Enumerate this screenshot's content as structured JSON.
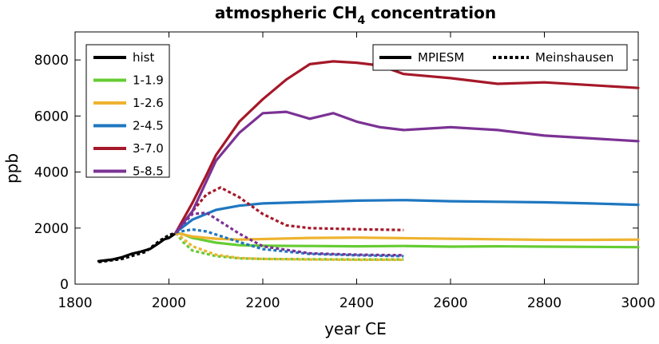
{
  "chart_data": {
    "type": "line",
    "title_main": "atmospheric CH",
    "title_sub": "4",
    "title_tail": " concentration",
    "xlabel": "year CE",
    "ylabel": "ppb",
    "xlim": [
      1800,
      3000
    ],
    "ylim": [
      0,
      9000
    ],
    "xticks": [
      "1800",
      "2000",
      "2200",
      "2400",
      "2600",
      "2800",
      "3000"
    ],
    "yticks": [
      "0",
      "2000",
      "4000",
      "6000",
      "8000"
    ],
    "grid": false,
    "legend_series_placement": "top-left",
    "legend_style_placement": "top-right",
    "style_legend": [
      {
        "label": "MPIESM",
        "dash": "solid"
      },
      {
        "label": "Meinshausen",
        "dash": "dotted"
      }
    ],
    "series": [
      {
        "name": "hist",
        "color": "#000000",
        "solid": [
          [
            1850,
            820
          ],
          [
            1880,
            880
          ],
          [
            1900,
            960
          ],
          [
            1920,
            1080
          ],
          [
            1940,
            1160
          ],
          [
            1960,
            1260
          ],
          [
            1980,
            1480
          ],
          [
            1990,
            1600
          ],
          [
            2000,
            1650
          ],
          [
            2014,
            1810
          ]
        ],
        "dotted": [
          [
            1850,
            790
          ],
          [
            1900,
            900
          ],
          [
            1950,
            1150
          ],
          [
            1980,
            1550
          ],
          [
            2000,
            1750
          ],
          [
            2014,
            1830
          ]
        ]
      },
      {
        "name": "1-1.9",
        "color": "#66cc33",
        "solid": [
          [
            2015,
            1830
          ],
          [
            2030,
            1780
          ],
          [
            2050,
            1650
          ],
          [
            2100,
            1480
          ],
          [
            2150,
            1390
          ],
          [
            2200,
            1370
          ],
          [
            2300,
            1360
          ],
          [
            2400,
            1350
          ],
          [
            2500,
            1360
          ],
          [
            2600,
            1340
          ],
          [
            2700,
            1350
          ],
          [
            2800,
            1340
          ],
          [
            2900,
            1330
          ],
          [
            3000,
            1320
          ]
        ],
        "dotted": [
          [
            2015,
            1830
          ],
          [
            2030,
            1500
          ],
          [
            2050,
            1200
          ],
          [
            2100,
            1000
          ],
          [
            2150,
            920
          ],
          [
            2200,
            900
          ],
          [
            2300,
            890
          ],
          [
            2400,
            880
          ],
          [
            2500,
            880
          ]
        ]
      },
      {
        "name": "1-2.6",
        "color": "#eeb32f",
        "solid": [
          [
            2015,
            1830
          ],
          [
            2050,
            1700
          ],
          [
            2100,
            1620
          ],
          [
            2150,
            1590
          ],
          [
            2200,
            1610
          ],
          [
            2300,
            1650
          ],
          [
            2400,
            1660
          ],
          [
            2500,
            1640
          ],
          [
            2600,
            1620
          ],
          [
            2700,
            1600
          ],
          [
            2800,
            1580
          ],
          [
            2900,
            1580
          ],
          [
            3000,
            1590
          ]
        ],
        "dotted": [
          [
            2015,
            1830
          ],
          [
            2050,
            1350
          ],
          [
            2100,
            1050
          ],
          [
            2150,
            930
          ],
          [
            2200,
            900
          ],
          [
            2300,
            880
          ],
          [
            2400,
            870
          ],
          [
            2500,
            870
          ]
        ]
      },
      {
        "name": "2-4.5",
        "color": "#1f77c0",
        "solid": [
          [
            2015,
            1850
          ],
          [
            2050,
            2300
          ],
          [
            2100,
            2650
          ],
          [
            2150,
            2800
          ],
          [
            2200,
            2880
          ],
          [
            2300,
            2930
          ],
          [
            2400,
            2980
          ],
          [
            2500,
            3000
          ],
          [
            2600,
            2960
          ],
          [
            2700,
            2940
          ],
          [
            2800,
            2920
          ],
          [
            2900,
            2880
          ],
          [
            3000,
            2830
          ]
        ],
        "dotted": [
          [
            2015,
            1850
          ],
          [
            2050,
            1950
          ],
          [
            2080,
            1880
          ],
          [
            2150,
            1500
          ],
          [
            2200,
            1250
          ],
          [
            2300,
            1080
          ],
          [
            2400,
            1030
          ],
          [
            2500,
            1000
          ]
        ]
      },
      {
        "name": "3-7.0",
        "color": "#a51829",
        "solid": [
          [
            2015,
            1850
          ],
          [
            2050,
            2900
          ],
          [
            2080,
            3900
          ],
          [
            2100,
            4600
          ],
          [
            2150,
            5800
          ],
          [
            2200,
            6600
          ],
          [
            2250,
            7300
          ],
          [
            2300,
            7850
          ],
          [
            2350,
            7950
          ],
          [
            2400,
            7900
          ],
          [
            2450,
            7800
          ],
          [
            2500,
            7500
          ],
          [
            2600,
            7350
          ],
          [
            2700,
            7150
          ],
          [
            2800,
            7200
          ],
          [
            2900,
            7100
          ],
          [
            3000,
            7000
          ]
        ],
        "dotted": [
          [
            2015,
            1850
          ],
          [
            2050,
            2600
          ],
          [
            2080,
            3200
          ],
          [
            2110,
            3450
          ],
          [
            2150,
            3100
          ],
          [
            2200,
            2500
          ],
          [
            2250,
            2100
          ],
          [
            2300,
            2000
          ],
          [
            2400,
            1960
          ],
          [
            2500,
            1930
          ]
        ]
      },
      {
        "name": "5-8.5",
        "color": "#7b3294",
        "solid": [
          [
            2015,
            1850
          ],
          [
            2050,
            2600
          ],
          [
            2100,
            4400
          ],
          [
            2150,
            5400
          ],
          [
            2200,
            6100
          ],
          [
            2250,
            6150
          ],
          [
            2300,
            5900
          ],
          [
            2350,
            6100
          ],
          [
            2400,
            5800
          ],
          [
            2450,
            5600
          ],
          [
            2500,
            5500
          ],
          [
            2600,
            5600
          ],
          [
            2700,
            5500
          ],
          [
            2800,
            5300
          ],
          [
            2900,
            5200
          ],
          [
            3000,
            5100
          ]
        ],
        "dotted": [
          [
            2015,
            1850
          ],
          [
            2050,
            2500
          ],
          [
            2080,
            2550
          ],
          [
            2150,
            1800
          ],
          [
            2200,
            1350
          ],
          [
            2300,
            1100
          ],
          [
            2400,
            1050
          ],
          [
            2500,
            1030
          ]
        ]
      }
    ]
  }
}
